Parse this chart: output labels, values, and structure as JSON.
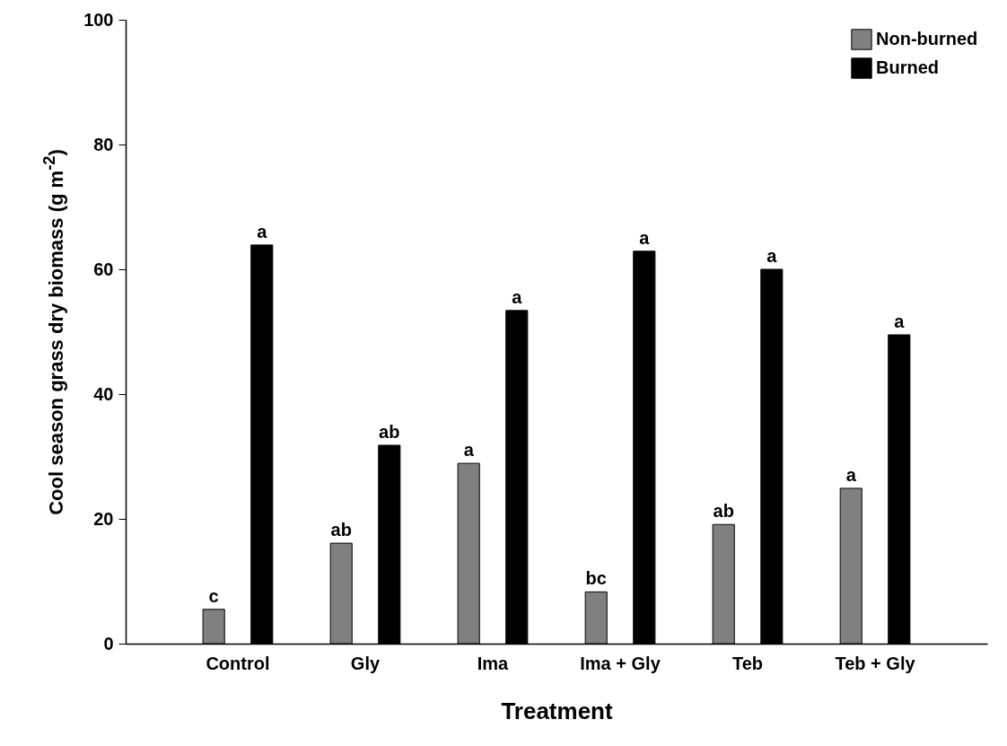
{
  "chart_data": {
    "type": "bar",
    "xlabel": "Treatment",
    "ylabel": "Cool season grass dry biomass (g m$^{-2}$)",
    "categories": [
      "Control",
      "Gly",
      "Ima",
      "Ima + Gly",
      "Teb",
      "Teb + Gly"
    ],
    "series": [
      {
        "name": "Non-burned",
        "color": "#808080",
        "values": [
          5.5,
          16.1,
          28.9,
          8.3,
          19.1,
          24.9
        ],
        "value_labels": [
          "c",
          "ab",
          "a",
          "bc",
          "ab",
          "a"
        ]
      },
      {
        "name": "Burned",
        "color": "#000000",
        "values": [
          63.9,
          31.8,
          53.4,
          62.9,
          60,
          49.5
        ],
        "value_labels": [
          "a",
          "ab",
          "a",
          "a",
          "a",
          "a"
        ]
      }
    ],
    "ylim": [
      0,
      100
    ],
    "yticks": [
      0,
      20,
      40,
      60,
      80,
      100
    ],
    "grid": false,
    "legend": "top right"
  }
}
